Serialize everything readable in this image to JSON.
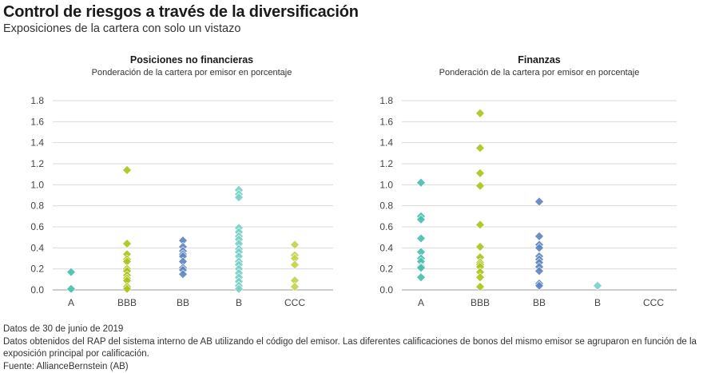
{
  "header": {
    "title": "Control de riesgos a través de la diversificación",
    "subtitle": "Exposiciones de la cartera con solo un vistazo"
  },
  "footer": {
    "lines": [
      "Datos de 30 de junio de 2019",
      "Datos obtenidos del RAP del sistema interno de AB utilizando el código del emisor. Las diferentes calificaciones de bonos del mismo emisor se agruparon en función de la exposición principal por calificación.",
      "Fuente: AllianceBernstein (AB)"
    ]
  },
  "colors": {
    "A": "#4bbfb0",
    "BBB": "#aec41c",
    "BB": "#5f86c0",
    "B": "#78d0c6",
    "CCC": "#c3d44c",
    "grid": "#d9d9d9",
    "baseline": "#cccccc"
  },
  "chart_data": [
    {
      "type": "scatter",
      "title": "Posiciones no financieras",
      "subtitle": "Ponderación de la cartera por emisor en porcentaje",
      "xlabel": "",
      "ylabel": "",
      "categories": [
        "A",
        "BBB",
        "BB",
        "B",
        "CCC"
      ],
      "ylim": [
        0,
        1.8
      ],
      "yticks": [
        "0.0",
        "0.2",
        "0.4",
        "0.6",
        "0.8",
        "1.0",
        "1.2",
        "1.4",
        "1.6",
        "1.8"
      ],
      "grid": true,
      "series": [
        {
          "name": "A",
          "values": [
            0.17,
            0.01
          ]
        },
        {
          "name": "BBB",
          "values": [
            1.14,
            0.44,
            0.34,
            0.29,
            0.27,
            0.2,
            0.18,
            0.14,
            0.11,
            0.09,
            0.03,
            0.01
          ]
        },
        {
          "name": "BB",
          "values": [
            0.47,
            0.41,
            0.37,
            0.34,
            0.32,
            0.27,
            0.21,
            0.19,
            0.15
          ]
        },
        {
          "name": "B",
          "values": [
            0.95,
            0.91,
            0.88,
            0.59,
            0.55,
            0.51,
            0.48,
            0.44,
            0.39,
            0.36,
            0.32,
            0.27,
            0.24,
            0.2,
            0.16,
            0.12,
            0.08,
            0.04,
            0.01
          ]
        },
        {
          "name": "CCC",
          "values": [
            0.43,
            0.33,
            0.3,
            0.24,
            0.09,
            0.03
          ]
        }
      ]
    },
    {
      "type": "scatter",
      "title": "Finanzas",
      "subtitle": "Ponderación de la cartera por emisor en porcentaje",
      "xlabel": "",
      "ylabel": "",
      "categories": [
        "A",
        "BBB",
        "BB",
        "B",
        "CCC"
      ],
      "ylim": [
        0,
        1.8
      ],
      "yticks": [
        "0.0",
        "0.2",
        "0.4",
        "0.6",
        "0.8",
        "1.0",
        "1.2",
        "1.4",
        "1.6",
        "1.8"
      ],
      "grid": true,
      "series": [
        {
          "name": "A",
          "values": [
            1.02,
            0.7,
            0.67,
            0.49,
            0.36,
            0.3,
            0.27,
            0.22,
            0.21,
            0.12
          ]
        },
        {
          "name": "BBB",
          "values": [
            1.68,
            1.35,
            1.11,
            0.99,
            0.62,
            0.41,
            0.31,
            0.26,
            0.24,
            0.22,
            0.17,
            0.12,
            0.03
          ]
        },
        {
          "name": "BB",
          "values": [
            0.84,
            0.51,
            0.43,
            0.4,
            0.32,
            0.29,
            0.26,
            0.22,
            0.18,
            0.06,
            0.04
          ]
        },
        {
          "name": "B",
          "values": [
            0.04
          ]
        },
        {
          "name": "CCC",
          "values": []
        }
      ]
    }
  ]
}
